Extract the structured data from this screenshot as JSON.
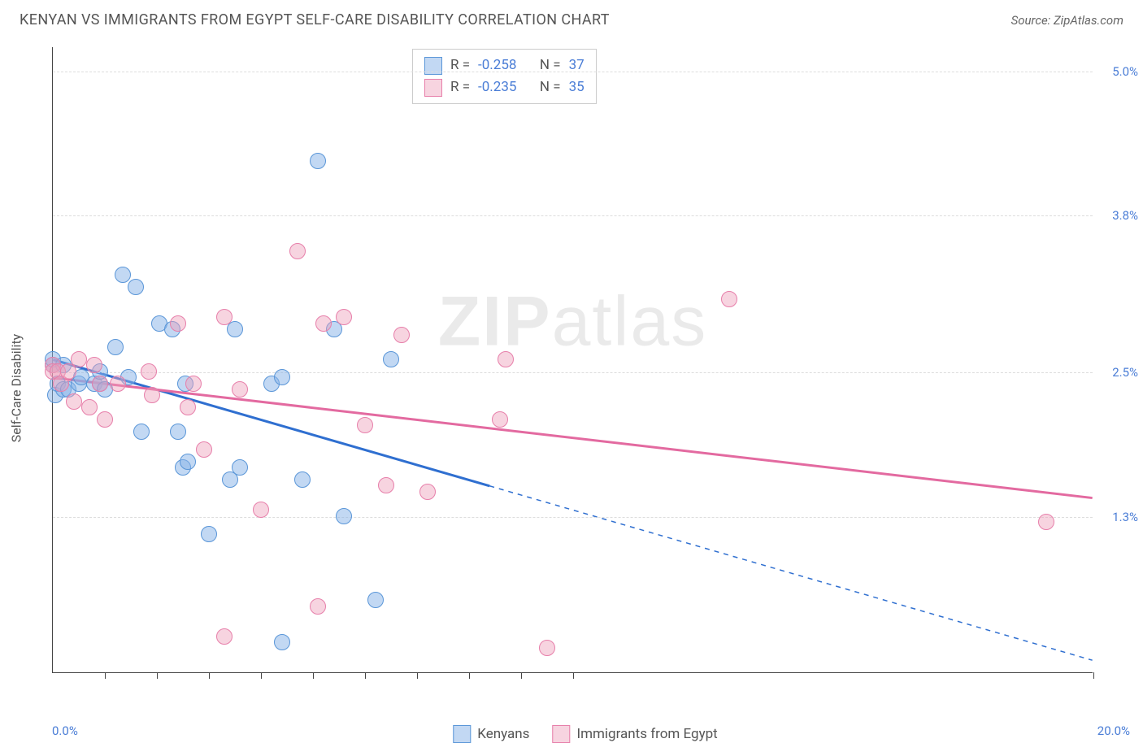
{
  "title": "KENYAN VS IMMIGRANTS FROM EGYPT SELF-CARE DISABILITY CORRELATION CHART",
  "source": "Source: ZipAtlas.com",
  "ylabel": "Self-Care Disability",
  "watermark_bold": "ZIP",
  "watermark_light": "atlas",
  "chart": {
    "xlim": [
      0,
      20
    ],
    "ylim": [
      0,
      5.2
    ],
    "x_axis_label_min": "0.0%",
    "x_axis_label_max": "20.0%",
    "y_gridlines": [
      1.3,
      2.5,
      3.8,
      5.0
    ],
    "y_grid_labels": [
      "1.3%",
      "2.5%",
      "3.8%",
      "5.0%"
    ],
    "x_ticks": [
      1.0,
      2.0,
      3.0,
      4.0,
      5.0,
      6.0,
      7.0,
      8.0,
      9.0,
      10.0,
      20.0
    ],
    "point_radius": 10,
    "series": [
      {
        "name": "Kenyans",
        "css_class": "series-a",
        "color_fill": "#85b2e8",
        "color_stroke": "#5a96d8",
        "R": "-0.258",
        "N": "37",
        "trend": {
          "x1": 0,
          "y1": 2.6,
          "x2": 8.4,
          "y2": 1.55,
          "solid": true,
          "extend_x2": 20,
          "extend_y2": 0.1
        },
        "points": [
          [
            0.0,
            2.55
          ],
          [
            0.0,
            2.6
          ],
          [
            0.05,
            2.3
          ],
          [
            0.1,
            2.4
          ],
          [
            0.2,
            2.55
          ],
          [
            0.2,
            2.35
          ],
          [
            0.3,
            2.35
          ],
          [
            0.5,
            2.4
          ],
          [
            0.55,
            2.45
          ],
          [
            0.8,
            2.4
          ],
          [
            0.9,
            2.4
          ],
          [
            0.9,
            2.5
          ],
          [
            1.0,
            2.35
          ],
          [
            1.2,
            2.7
          ],
          [
            1.45,
            2.45
          ],
          [
            1.35,
            3.3
          ],
          [
            1.6,
            3.2
          ],
          [
            1.7,
            2.0
          ],
          [
            2.05,
            2.9
          ],
          [
            2.3,
            2.85
          ],
          [
            2.4,
            2.0
          ],
          [
            2.5,
            1.7
          ],
          [
            2.55,
            2.4
          ],
          [
            2.6,
            1.75
          ],
          [
            3.0,
            1.15
          ],
          [
            3.4,
            1.6
          ],
          [
            3.5,
            2.85
          ],
          [
            3.6,
            1.7
          ],
          [
            4.2,
            2.4
          ],
          [
            4.4,
            2.45
          ],
          [
            4.4,
            0.25
          ],
          [
            4.8,
            1.6
          ],
          [
            5.1,
            4.25
          ],
          [
            5.4,
            2.85
          ],
          [
            5.6,
            1.3
          ],
          [
            6.2,
            0.6
          ],
          [
            6.5,
            2.6
          ]
        ]
      },
      {
        "name": "Immigrants from Egypt",
        "css_class": "series-b",
        "color_fill": "#eea0ba",
        "color_stroke": "#e77faa",
        "R": "-0.235",
        "N": "35",
        "trend": {
          "x1": 0,
          "y1": 2.45,
          "x2": 20,
          "y2": 1.45,
          "solid": true
        },
        "points": [
          [
            0.0,
            2.55
          ],
          [
            0.0,
            2.5
          ],
          [
            0.1,
            2.5
          ],
          [
            0.15,
            2.4
          ],
          [
            0.3,
            2.5
          ],
          [
            0.4,
            2.25
          ],
          [
            0.5,
            2.6
          ],
          [
            0.7,
            2.2
          ],
          [
            0.8,
            2.55
          ],
          [
            0.9,
            2.4
          ],
          [
            1.0,
            2.1
          ],
          [
            1.25,
            2.4
          ],
          [
            1.85,
            2.5
          ],
          [
            1.9,
            2.3
          ],
          [
            2.4,
            2.9
          ],
          [
            2.6,
            2.2
          ],
          [
            2.7,
            2.4
          ],
          [
            2.9,
            1.85
          ],
          [
            3.3,
            2.95
          ],
          [
            3.3,
            0.3
          ],
          [
            3.6,
            2.35
          ],
          [
            4.0,
            1.35
          ],
          [
            4.7,
            3.5
          ],
          [
            5.1,
            0.55
          ],
          [
            5.2,
            2.9
          ],
          [
            5.6,
            2.95
          ],
          [
            6.0,
            2.05
          ],
          [
            6.4,
            1.55
          ],
          [
            6.7,
            2.8
          ],
          [
            7.2,
            1.5
          ],
          [
            8.6,
            2.1
          ],
          [
            8.7,
            2.6
          ],
          [
            9.5,
            0.2
          ],
          [
            13.0,
            3.1
          ],
          [
            19.1,
            1.25
          ]
        ]
      }
    ]
  },
  "stats_labels": {
    "R": "R =",
    "N": "N ="
  },
  "legend_swatch_a": "swatch-a",
  "legend_swatch_b": "swatch-b"
}
